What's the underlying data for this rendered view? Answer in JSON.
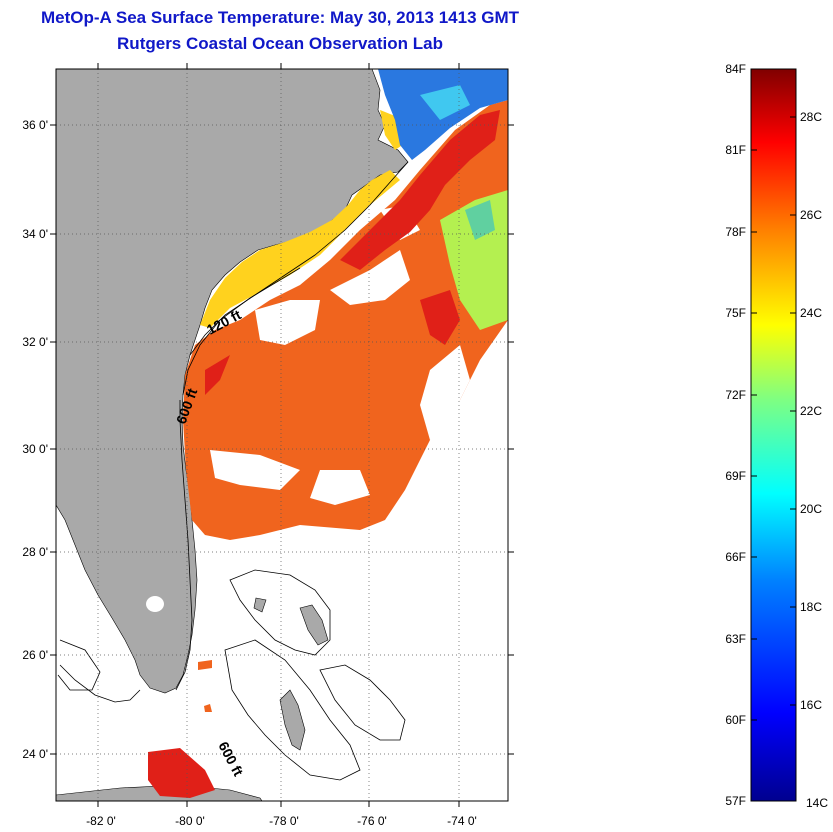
{
  "title": "MetOp-A Sea Surface Temperature:  May 30, 2013 1413 GMT",
  "subtitle": "Rutgers Coastal Ocean Observation Lab",
  "map": {
    "lat_ticks": [
      "36 0'",
      "34 0'",
      "32 0'",
      "30 0'",
      "28 0'",
      "26 0'",
      "24 0'"
    ],
    "lon_ticks": [
      "-82 0'",
      "-80 0'",
      "-78 0'",
      "-76 0'",
      "-74 0'"
    ],
    "contour_labels": [
      "120 ft",
      "600 ft",
      "600 ft"
    ],
    "land_color": "#a9a9a9"
  },
  "colorbar": {
    "fahrenheit": [
      "84F",
      "81F",
      "78F",
      "75F",
      "72F",
      "69F",
      "66F",
      "63F",
      "60F",
      "57F"
    ],
    "celsius": [
      "28C",
      "26C",
      "24C",
      "22C",
      "20C",
      "18C",
      "16C",
      "14C"
    ],
    "colors": [
      "#00008f",
      "#0000ff",
      "#0080ff",
      "#00ffff",
      "#80ff80",
      "#ffff00",
      "#ff8000",
      "#ff0000",
      "#800000"
    ]
  }
}
